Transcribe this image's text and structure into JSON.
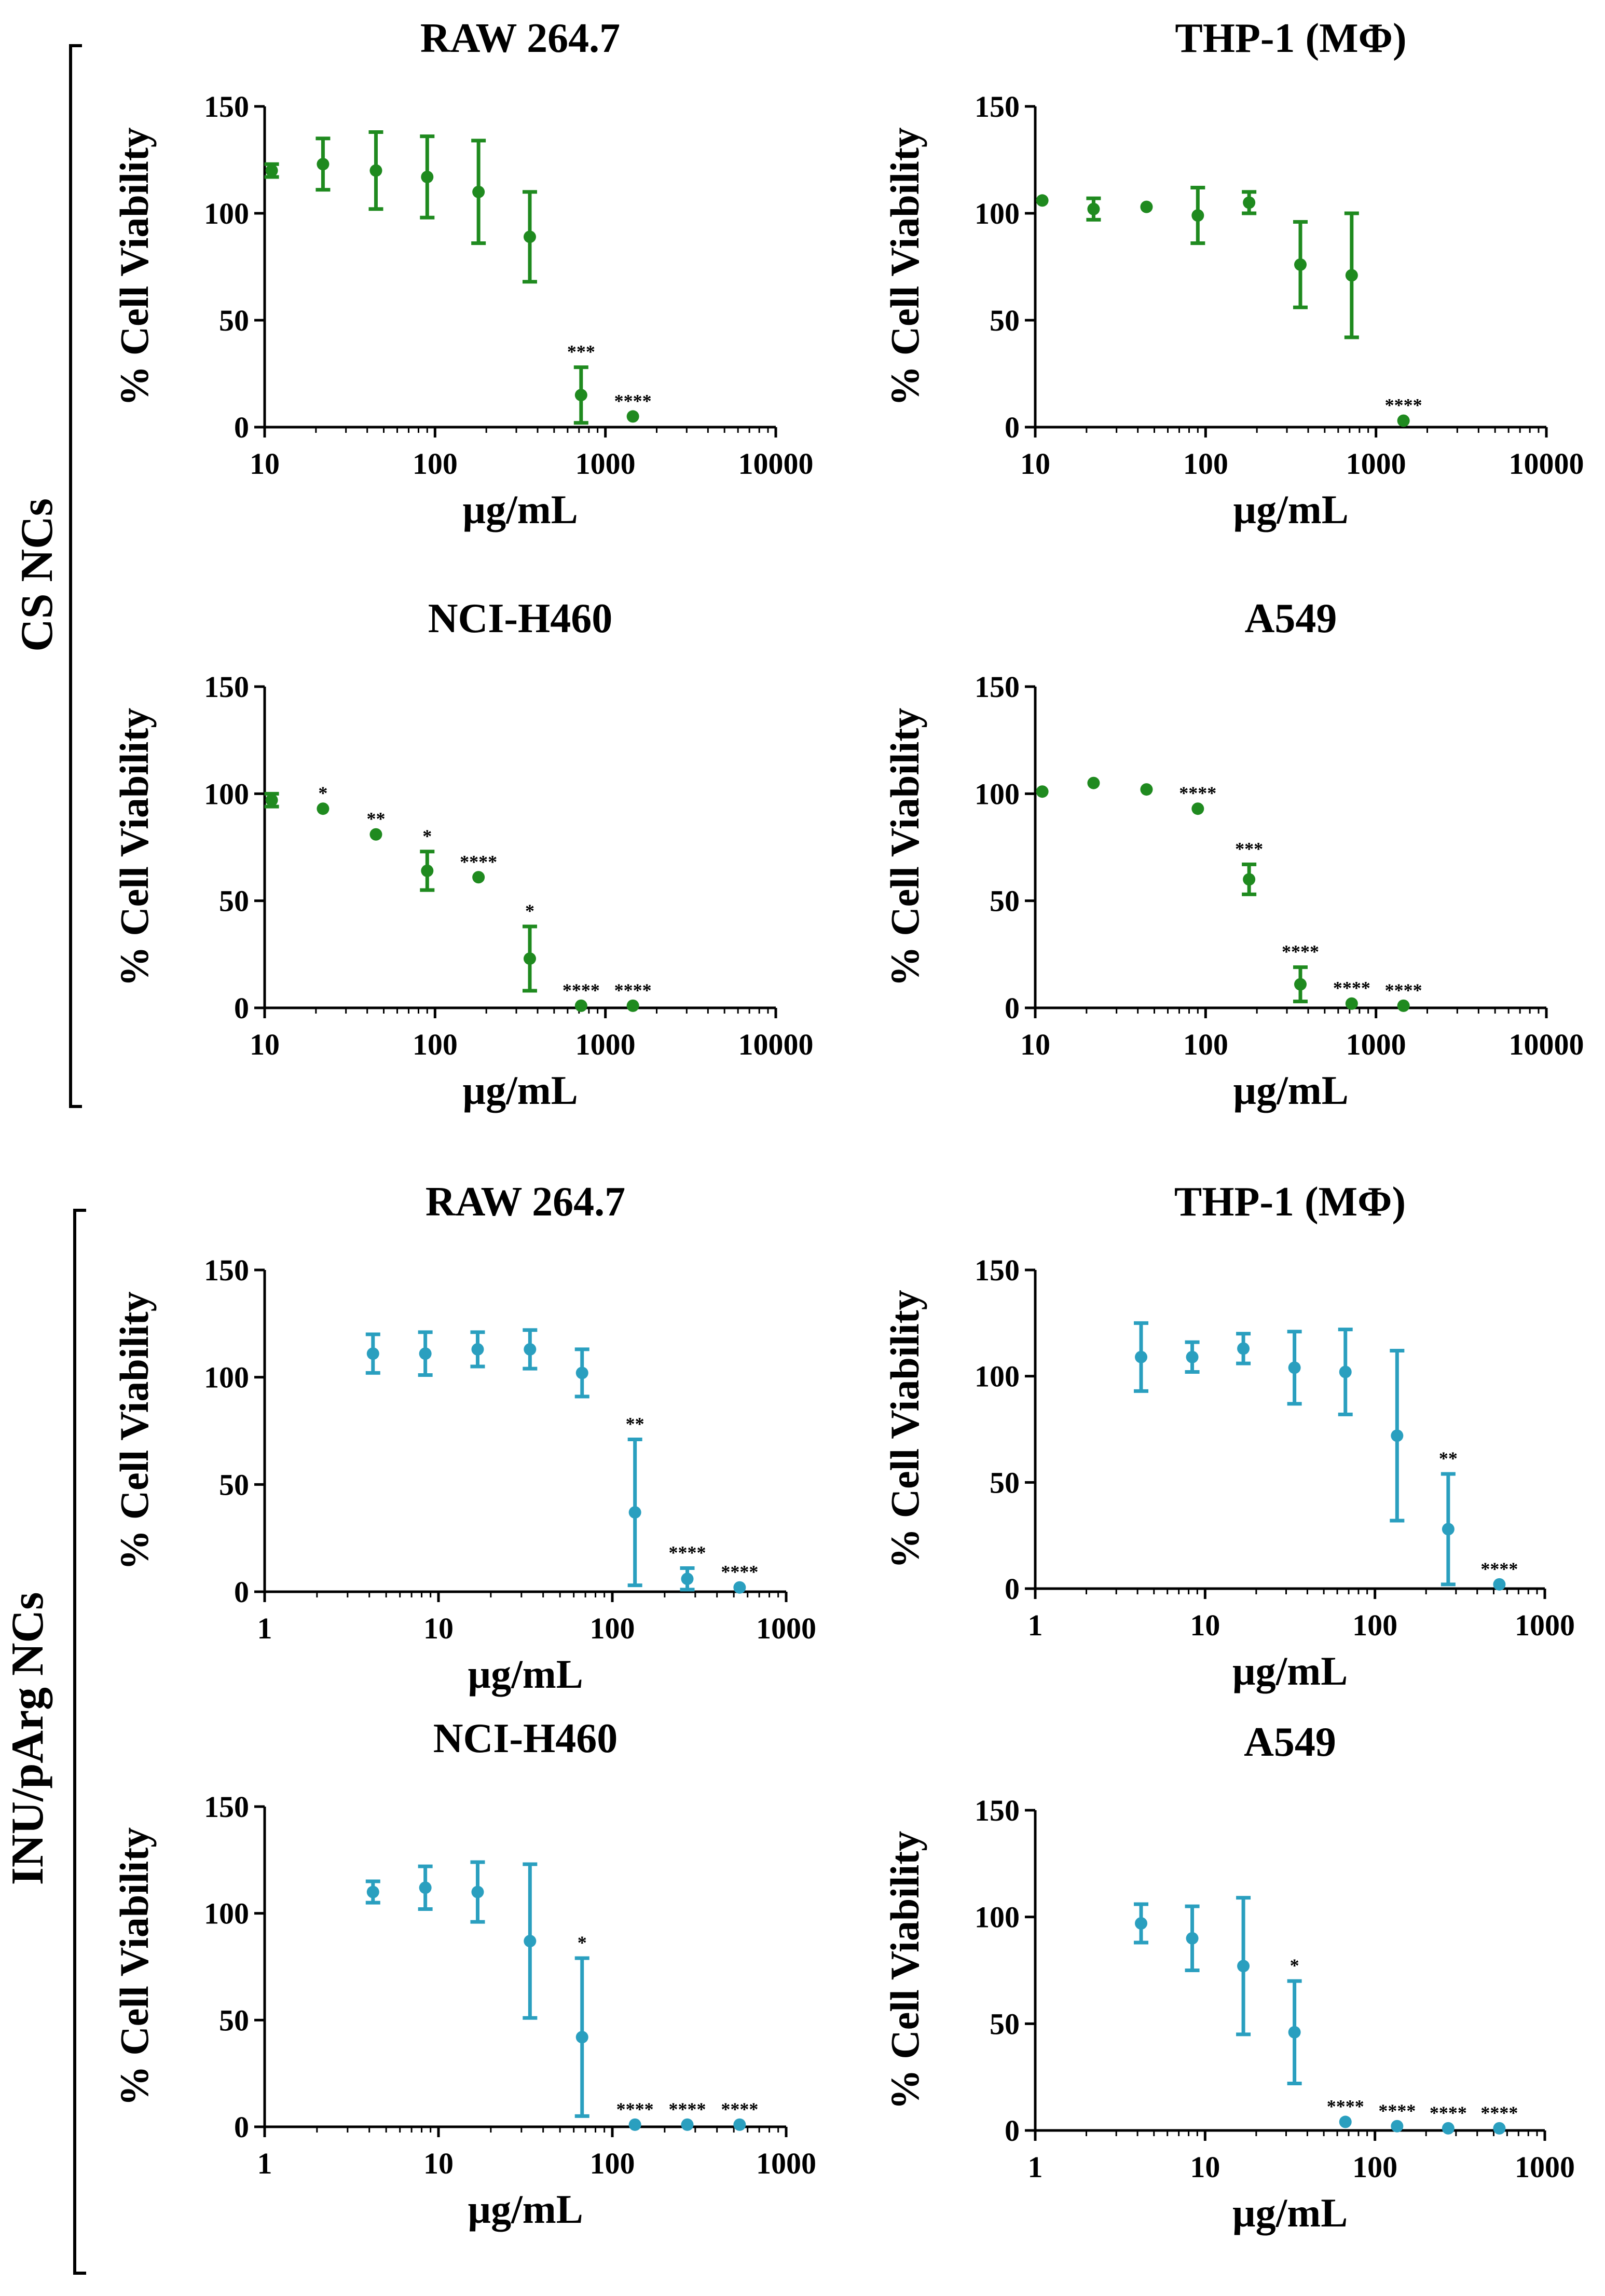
{
  "groups": [
    {
      "label": "CS NCs"
    },
    {
      "label": "INU/pArg NCs"
    }
  ],
  "colors": {
    "cs": "#1f8a1f",
    "inu": "#2a9fbf"
  },
  "chart_data": [
    {
      "type": "scatter",
      "group": 0,
      "title": "RAW 264.7",
      "xlabel": "µg/mL",
      "ylabel": "% Cell Viability",
      "xscale": "log",
      "xlim": [
        10,
        10000
      ],
      "ylim": [
        0,
        150
      ],
      "xticks": [
        10,
        100,
        1000,
        10000
      ],
      "xtick_labels": [
        "10",
        "100",
        "1000",
        "10000"
      ],
      "yticks": [
        0,
        50,
        100,
        150
      ],
      "ytick_labels": [
        "0",
        "50",
        "100",
        "150"
      ],
      "color": "#1f8a1f",
      "points": [
        {
          "x": 11,
          "y": 120,
          "err": 3,
          "sig": ""
        },
        {
          "x": 22,
          "y": 123,
          "err": 12,
          "sig": ""
        },
        {
          "x": 45,
          "y": 120,
          "err": 18,
          "sig": ""
        },
        {
          "x": 90,
          "y": 117,
          "err": 19,
          "sig": ""
        },
        {
          "x": 180,
          "y": 110,
          "err": 24,
          "sig": ""
        },
        {
          "x": 360,
          "y": 89,
          "err": 21,
          "sig": ""
        },
        {
          "x": 720,
          "y": 15,
          "err": 13,
          "sig": "***"
        },
        {
          "x": 1450,
          "y": 5,
          "err": 0,
          "sig": "****"
        }
      ]
    },
    {
      "type": "scatter",
      "group": 0,
      "title": "THP-1 (MΦ)",
      "xlabel": "µg/mL",
      "ylabel": "% Cell Viability",
      "xscale": "log",
      "xlim": [
        10,
        10000
      ],
      "ylim": [
        0,
        150
      ],
      "xticks": [
        10,
        100,
        1000,
        10000
      ],
      "xtick_labels": [
        "10",
        "100",
        "1000",
        "10000"
      ],
      "yticks": [
        0,
        50,
        100,
        150
      ],
      "ytick_labels": [
        "0",
        "50",
        "100",
        "150"
      ],
      "color": "#1f8a1f",
      "points": [
        {
          "x": 11,
          "y": 106,
          "err": 0,
          "sig": ""
        },
        {
          "x": 22,
          "y": 102,
          "err": 5,
          "sig": ""
        },
        {
          "x": 45,
          "y": 103,
          "err": 0,
          "sig": ""
        },
        {
          "x": 90,
          "y": 99,
          "err": 13,
          "sig": ""
        },
        {
          "x": 180,
          "y": 105,
          "err": 5,
          "sig": ""
        },
        {
          "x": 360,
          "y": 76,
          "err": 20,
          "sig": ""
        },
        {
          "x": 720,
          "y": 71,
          "err": 29,
          "sig": ""
        },
        {
          "x": 1450,
          "y": 3,
          "err": 0,
          "sig": "****"
        }
      ]
    },
    {
      "type": "scatter",
      "group": 0,
      "title": "NCI-H460",
      "xlabel": "µg/mL",
      "ylabel": "% Cell Viability",
      "xscale": "log",
      "xlim": [
        10,
        10000
      ],
      "ylim": [
        0,
        150
      ],
      "xticks": [
        10,
        100,
        1000,
        10000
      ],
      "xtick_labels": [
        "10",
        "100",
        "1000",
        "10000"
      ],
      "yticks": [
        0,
        50,
        100,
        150
      ],
      "ytick_labels": [
        "0",
        "50",
        "100",
        "150"
      ],
      "color": "#1f8a1f",
      "points": [
        {
          "x": 11,
          "y": 97,
          "err": 3,
          "sig": ""
        },
        {
          "x": 22,
          "y": 93,
          "err": 0,
          "sig": "*"
        },
        {
          "x": 45,
          "y": 81,
          "err": 0,
          "sig": "**"
        },
        {
          "x": 90,
          "y": 64,
          "err": 9,
          "sig": "*"
        },
        {
          "x": 180,
          "y": 61,
          "err": 0,
          "sig": "****"
        },
        {
          "x": 360,
          "y": 23,
          "err": 15,
          "sig": "*"
        },
        {
          "x": 720,
          "y": 1,
          "err": 0,
          "sig": "****"
        },
        {
          "x": 1450,
          "y": 1,
          "err": 0,
          "sig": "****"
        }
      ]
    },
    {
      "type": "scatter",
      "group": 0,
      "title": "A549",
      "xlabel": "µg/mL",
      "ylabel": "% Cell Viability",
      "xscale": "log",
      "xlim": [
        10,
        10000
      ],
      "ylim": [
        0,
        150
      ],
      "xticks": [
        10,
        100,
        1000,
        10000
      ],
      "xtick_labels": [
        "10",
        "100",
        "1000",
        "10000"
      ],
      "yticks": [
        0,
        50,
        100,
        150
      ],
      "ytick_labels": [
        "0",
        "50",
        "100",
        "150"
      ],
      "color": "#1f8a1f",
      "points": [
        {
          "x": 11,
          "y": 101,
          "err": 0,
          "sig": ""
        },
        {
          "x": 22,
          "y": 105,
          "err": 0,
          "sig": ""
        },
        {
          "x": 45,
          "y": 102,
          "err": 0,
          "sig": ""
        },
        {
          "x": 90,
          "y": 93,
          "err": 0,
          "sig": "****"
        },
        {
          "x": 180,
          "y": 60,
          "err": 7,
          "sig": "***"
        },
        {
          "x": 360,
          "y": 11,
          "err": 8,
          "sig": "****"
        },
        {
          "x": 720,
          "y": 2,
          "err": 0,
          "sig": "****"
        },
        {
          "x": 1450,
          "y": 1,
          "err": 0,
          "sig": "****"
        }
      ]
    },
    {
      "type": "scatter",
      "group": 1,
      "title": "RAW 264.7",
      "xlabel": "µg/mL",
      "ylabel": "% Cell Viability",
      "xscale": "log",
      "xlim": [
        1,
        1000
      ],
      "ylim": [
        0,
        150
      ],
      "xticks": [
        1,
        10,
        100,
        1000
      ],
      "xtick_labels": [
        "1",
        "10",
        "100",
        "1000"
      ],
      "yticks": [
        0,
        50,
        100,
        150
      ],
      "ytick_labels": [
        "0",
        "50",
        "100",
        "150"
      ],
      "color": "#2a9fbf",
      "points": [
        {
          "x": 4.2,
          "y": 111,
          "err": 9,
          "sig": ""
        },
        {
          "x": 8.4,
          "y": 111,
          "err": 10,
          "sig": ""
        },
        {
          "x": 16.8,
          "y": 113,
          "err": 8,
          "sig": ""
        },
        {
          "x": 33.6,
          "y": 113,
          "err": 9,
          "sig": ""
        },
        {
          "x": 67,
          "y": 102,
          "err": 11,
          "sig": ""
        },
        {
          "x": 135,
          "y": 37,
          "err": 34,
          "sig": "**"
        },
        {
          "x": 270,
          "y": 6,
          "err": 5,
          "sig": "****"
        },
        {
          "x": 540,
          "y": 2,
          "err": 0,
          "sig": "****"
        }
      ]
    },
    {
      "type": "scatter",
      "group": 1,
      "title": "THP-1 (MΦ)",
      "xlabel": "µg/mL",
      "ylabel": "% Cell Viability",
      "xscale": "log",
      "xlim": [
        1,
        1000
      ],
      "ylim": [
        0,
        150
      ],
      "xticks": [
        1,
        10,
        100,
        1000
      ],
      "xtick_labels": [
        "1",
        "10",
        "100",
        "1000"
      ],
      "yticks": [
        0,
        50,
        100,
        150
      ],
      "ytick_labels": [
        "0",
        "50",
        "100",
        "150"
      ],
      "color": "#2a9fbf",
      "points": [
        {
          "x": 4.2,
          "y": 109,
          "err": 16,
          "sig": ""
        },
        {
          "x": 8.4,
          "y": 109,
          "err": 7,
          "sig": ""
        },
        {
          "x": 16.8,
          "y": 113,
          "err": 7,
          "sig": ""
        },
        {
          "x": 33.6,
          "y": 104,
          "err": 17,
          "sig": ""
        },
        {
          "x": 67,
          "y": 102,
          "err": 20,
          "sig": ""
        },
        {
          "x": 135,
          "y": 72,
          "err": 40,
          "sig": ""
        },
        {
          "x": 270,
          "y": 28,
          "err": 26,
          "sig": "**"
        },
        {
          "x": 540,
          "y": 2,
          "err": 0,
          "sig": "****"
        }
      ]
    },
    {
      "type": "scatter",
      "group": 1,
      "title": "NCI-H460",
      "xlabel": "µg/mL",
      "ylabel": "% Cell Viability",
      "xscale": "log",
      "xlim": [
        1,
        1000
      ],
      "ylim": [
        0,
        150
      ],
      "xticks": [
        1,
        10,
        100,
        1000
      ],
      "xtick_labels": [
        "1",
        "10",
        "100",
        "1000"
      ],
      "yticks": [
        0,
        50,
        100,
        150
      ],
      "ytick_labels": [
        "0",
        "50",
        "100",
        "150"
      ],
      "color": "#2a9fbf",
      "points": [
        {
          "x": 4.2,
          "y": 110,
          "err": 5,
          "sig": ""
        },
        {
          "x": 8.4,
          "y": 112,
          "err": 10,
          "sig": ""
        },
        {
          "x": 16.8,
          "y": 110,
          "err": 14,
          "sig": ""
        },
        {
          "x": 33.6,
          "y": 87,
          "err": 36,
          "sig": ""
        },
        {
          "x": 67,
          "y": 42,
          "err": 37,
          "sig": "*"
        },
        {
          "x": 135,
          "y": 1,
          "err": 0,
          "sig": "****"
        },
        {
          "x": 270,
          "y": 1,
          "err": 0,
          "sig": "****"
        },
        {
          "x": 540,
          "y": 1,
          "err": 0,
          "sig": "****"
        }
      ]
    },
    {
      "type": "scatter",
      "group": 1,
      "title": "A549",
      "xlabel": "µg/mL",
      "ylabel": "% Cell Viability",
      "xscale": "log",
      "xlim": [
        1,
        1000
      ],
      "ylim": [
        0,
        150
      ],
      "xticks": [
        1,
        10,
        100,
        1000
      ],
      "xtick_labels": [
        "1",
        "10",
        "100",
        "1000"
      ],
      "yticks": [
        0,
        50,
        100,
        150
      ],
      "ytick_labels": [
        "0",
        "50",
        "100",
        "150"
      ],
      "color": "#2a9fbf",
      "points": [
        {
          "x": 4.2,
          "y": 97,
          "err": 9,
          "sig": ""
        },
        {
          "x": 8.4,
          "y": 90,
          "err": 15,
          "sig": ""
        },
        {
          "x": 16.8,
          "y": 77,
          "err": 32,
          "sig": ""
        },
        {
          "x": 33.6,
          "y": 46,
          "err": 24,
          "sig": "*"
        },
        {
          "x": 67,
          "y": 4,
          "err": 0,
          "sig": "****"
        },
        {
          "x": 135,
          "y": 2,
          "err": 0,
          "sig": "****"
        },
        {
          "x": 270,
          "y": 1,
          "err": 0,
          "sig": "****"
        },
        {
          "x": 540,
          "y": 1,
          "err": 0,
          "sig": "****"
        }
      ]
    }
  ]
}
